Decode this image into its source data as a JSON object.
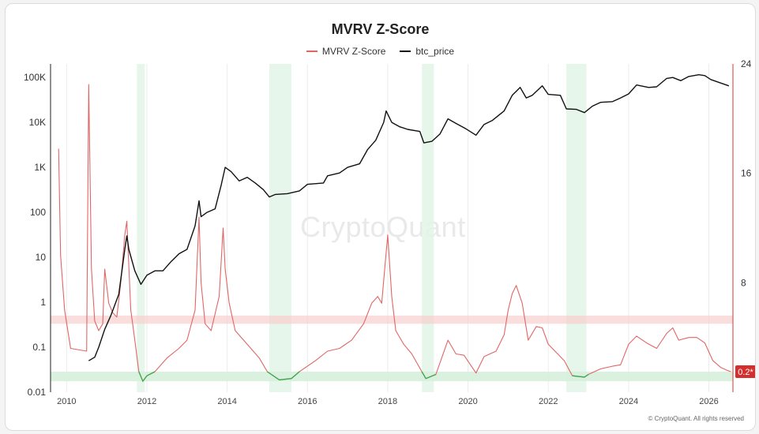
{
  "chart_data": {
    "type": "line",
    "title": "MVRV Z-Score",
    "watermark": "CryptoQuant",
    "copyright": "© CryptoQuant. All rights reserved",
    "x_range": [
      2009.6,
      2026.6
    ],
    "x_ticks": [
      "2010",
      "2012",
      "2014",
      "2016",
      "2018",
      "2020",
      "2022",
      "2024",
      "2026"
    ],
    "y_left": {
      "scale": "log",
      "range": [
        0.01,
        200000
      ],
      "ticks": [
        "0.01",
        "0.1",
        "1",
        "10",
        "100",
        "1K",
        "10K",
        "100K"
      ]
    },
    "y_right": {
      "scale": "linear",
      "range": [
        0,
        24
      ],
      "ticks": [
        "8",
        "16",
        "24"
      ]
    },
    "current_badge": "0.2*",
    "bands": {
      "red_zone": {
        "right_value": [
          5,
          5.6
        ],
        "color": "#f8cfcf"
      },
      "green_zone": {
        "right_value": [
          0.8,
          1.5
        ],
        "color": "#d6f0dc"
      }
    },
    "shaded_periods": [
      [
        2011.75,
        2011.95
      ],
      [
        2015.05,
        2015.6
      ],
      [
        2018.85,
        2019.15
      ],
      [
        2022.45,
        2022.95
      ]
    ],
    "series": [
      {
        "name": "MVRV Z-Score",
        "axis": "right",
        "color": "#e06666",
        "points": [
          [
            2009.8,
            17.8
          ],
          [
            2009.85,
            10
          ],
          [
            2009.95,
            6
          ],
          [
            2010.1,
            3.2
          ],
          [
            2010.5,
            3.0
          ],
          [
            2010.55,
            22.5
          ],
          [
            2010.62,
            9
          ],
          [
            2010.7,
            5.2
          ],
          [
            2010.8,
            4.5
          ],
          [
            2010.9,
            5
          ],
          [
            2010.95,
            9
          ],
          [
            2011.05,
            6.5
          ],
          [
            2011.15,
            5.8
          ],
          [
            2011.25,
            5.5
          ],
          [
            2011.35,
            8
          ],
          [
            2011.45,
            11.5
          ],
          [
            2011.5,
            12.5
          ],
          [
            2011.6,
            6
          ],
          [
            2011.7,
            3.8
          ],
          [
            2011.8,
            1.5
          ],
          [
            2011.9,
            0.8
          ],
          [
            2012.0,
            1.2
          ],
          [
            2012.2,
            1.5
          ],
          [
            2012.5,
            2.5
          ],
          [
            2012.8,
            3.2
          ],
          [
            2013.0,
            3.8
          ],
          [
            2013.2,
            6
          ],
          [
            2013.3,
            12.8
          ],
          [
            2013.35,
            8
          ],
          [
            2013.45,
            5
          ],
          [
            2013.6,
            4.5
          ],
          [
            2013.8,
            7
          ],
          [
            2013.9,
            12
          ],
          [
            2013.95,
            9
          ],
          [
            2014.05,
            6.5
          ],
          [
            2014.2,
            4.5
          ],
          [
            2014.5,
            3.5
          ],
          [
            2014.8,
            2.5
          ],
          [
            2015.0,
            1.5
          ],
          [
            2015.3,
            0.9
          ],
          [
            2015.6,
            1.0
          ],
          [
            2015.8,
            1.5
          ],
          [
            2016.2,
            2.3
          ],
          [
            2016.5,
            3.0
          ],
          [
            2016.8,
            3.2
          ],
          [
            2017.1,
            3.8
          ],
          [
            2017.4,
            5
          ],
          [
            2017.6,
            6.5
          ],
          [
            2017.75,
            7
          ],
          [
            2017.85,
            6.5
          ],
          [
            2018.0,
            11.5
          ],
          [
            2018.1,
            7
          ],
          [
            2018.2,
            4.5
          ],
          [
            2018.4,
            3.5
          ],
          [
            2018.6,
            2.8
          ],
          [
            2018.85,
            1.5
          ],
          [
            2018.95,
            1.0
          ],
          [
            2019.2,
            1.3
          ],
          [
            2019.5,
            3.8
          ],
          [
            2019.7,
            2.8
          ],
          [
            2019.9,
            2.7
          ],
          [
            2020.2,
            1.4
          ],
          [
            2020.4,
            2.6
          ],
          [
            2020.7,
            3.0
          ],
          [
            2020.9,
            4.2
          ],
          [
            2021.0,
            6
          ],
          [
            2021.1,
            7.2
          ],
          [
            2021.2,
            7.8
          ],
          [
            2021.35,
            6.5
          ],
          [
            2021.5,
            3.8
          ],
          [
            2021.7,
            4.8
          ],
          [
            2021.85,
            4.7
          ],
          [
            2022.0,
            3.5
          ],
          [
            2022.2,
            2.9
          ],
          [
            2022.4,
            2.3
          ],
          [
            2022.6,
            1.2
          ],
          [
            2022.9,
            1.1
          ],
          [
            2023.0,
            1.3
          ],
          [
            2023.3,
            1.7
          ],
          [
            2023.6,
            1.9
          ],
          [
            2023.8,
            2.0
          ],
          [
            2024.0,
            3.5
          ],
          [
            2024.2,
            4.1
          ],
          [
            2024.45,
            3.6
          ],
          [
            2024.7,
            3.2
          ],
          [
            2024.95,
            4.3
          ],
          [
            2025.1,
            4.7
          ],
          [
            2025.25,
            3.8
          ],
          [
            2025.5,
            4.0
          ],
          [
            2025.7,
            4.0
          ],
          [
            2025.9,
            3.6
          ],
          [
            2026.1,
            2.3
          ],
          [
            2026.3,
            1.8
          ],
          [
            2026.45,
            1.6
          ],
          [
            2026.55,
            1.5
          ]
        ]
      },
      {
        "name": "btc_price",
        "axis": "left",
        "color": "#111111",
        "points": [
          [
            2010.55,
            0.05
          ],
          [
            2010.7,
            0.06
          ],
          [
            2010.8,
            0.1
          ],
          [
            2010.95,
            0.25
          ],
          [
            2011.1,
            0.5
          ],
          [
            2011.3,
            1.5
          ],
          [
            2011.45,
            15
          ],
          [
            2011.5,
            30
          ],
          [
            2011.55,
            15
          ],
          [
            2011.7,
            5
          ],
          [
            2011.85,
            2.5
          ],
          [
            2012.0,
            4
          ],
          [
            2012.2,
            5
          ],
          [
            2012.4,
            5
          ],
          [
            2012.6,
            8
          ],
          [
            2012.8,
            12
          ],
          [
            2013.0,
            15
          ],
          [
            2013.2,
            50
          ],
          [
            2013.3,
            180
          ],
          [
            2013.35,
            80
          ],
          [
            2013.5,
            100
          ],
          [
            2013.7,
            120
          ],
          [
            2013.85,
            400
          ],
          [
            2013.95,
            1000
          ],
          [
            2014.1,
            800
          ],
          [
            2014.3,
            500
          ],
          [
            2014.5,
            600
          ],
          [
            2014.7,
            450
          ],
          [
            2014.9,
            320
          ],
          [
            2015.05,
            220
          ],
          [
            2015.2,
            250
          ],
          [
            2015.5,
            260
          ],
          [
            2015.8,
            300
          ],
          [
            2016.0,
            420
          ],
          [
            2016.4,
            450
          ],
          [
            2016.5,
            650
          ],
          [
            2016.8,
            750
          ],
          [
            2017.0,
            1000
          ],
          [
            2017.3,
            1200
          ],
          [
            2017.5,
            2500
          ],
          [
            2017.7,
            4000
          ],
          [
            2017.9,
            10000
          ],
          [
            2017.96,
            18000
          ],
          [
            2018.1,
            10000
          ],
          [
            2018.3,
            8000
          ],
          [
            2018.5,
            7000
          ],
          [
            2018.8,
            6300
          ],
          [
            2018.9,
            3500
          ],
          [
            2019.1,
            3800
          ],
          [
            2019.3,
            5500
          ],
          [
            2019.5,
            12000
          ],
          [
            2019.7,
            9500
          ],
          [
            2019.95,
            7200
          ],
          [
            2020.2,
            5200
          ],
          [
            2020.4,
            9000
          ],
          [
            2020.6,
            11000
          ],
          [
            2020.9,
            18000
          ],
          [
            2021.1,
            40000
          ],
          [
            2021.3,
            60000
          ],
          [
            2021.45,
            35000
          ],
          [
            2021.6,
            40000
          ],
          [
            2021.85,
            65000
          ],
          [
            2022.0,
            42000
          ],
          [
            2022.3,
            40000
          ],
          [
            2022.45,
            20000
          ],
          [
            2022.7,
            19500
          ],
          [
            2022.9,
            16500
          ],
          [
            2023.1,
            23000
          ],
          [
            2023.3,
            28000
          ],
          [
            2023.6,
            29000
          ],
          [
            2023.8,
            35000
          ],
          [
            2024.0,
            43000
          ],
          [
            2024.2,
            68000
          ],
          [
            2024.5,
            60000
          ],
          [
            2024.7,
            62000
          ],
          [
            2024.95,
            95000
          ],
          [
            2025.1,
            100000
          ],
          [
            2025.3,
            85000
          ],
          [
            2025.5,
            105000
          ],
          [
            2025.75,
            115000
          ],
          [
            2025.9,
            110000
          ],
          [
            2026.05,
            90000
          ],
          [
            2026.3,
            75000
          ],
          [
            2026.5,
            65000
          ]
        ]
      }
    ]
  },
  "legend": [
    {
      "label": "MVRV Z-Score",
      "color": "#e06666"
    },
    {
      "label": "btc_price",
      "color": "#111111"
    }
  ]
}
